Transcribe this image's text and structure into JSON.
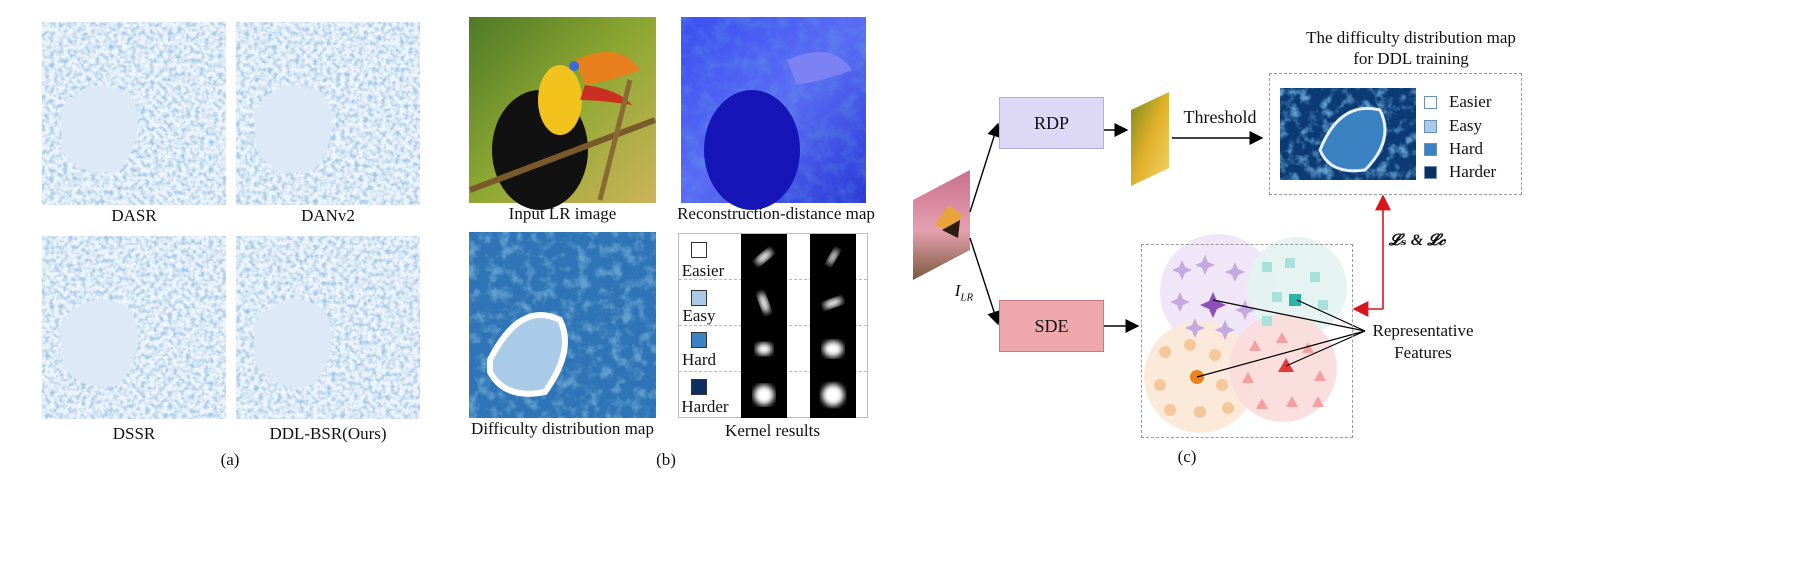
{
  "panel_a": {
    "maps": [
      {
        "label": "DASR"
      },
      {
        "label": "DANv2"
      },
      {
        "label": "DSSR"
      },
      {
        "label": "DDL-BSR(Ours)"
      }
    ],
    "caption": "(a)"
  },
  "panel_b": {
    "input_label": "Input LR image",
    "recon_label": "Reconstruction-distance map",
    "difficulty_label": "Difficulty distribution map",
    "kernel_label": "Kernel results",
    "kernel_rows": [
      {
        "label": "Easier",
        "color": "#ffffff"
      },
      {
        "label": "Easy",
        "color": "#a9cbe8"
      },
      {
        "label": "Hard",
        "color": "#3b82c2"
      },
      {
        "label": "Harder",
        "color": "#0b2f5e"
      }
    ],
    "caption": "(b)"
  },
  "panel_c": {
    "input_label_main": "I",
    "input_label_sub": "LR",
    "rdp_label": "RDP",
    "sde_label": "SDE",
    "threshold_label": "Threshold",
    "map_title": "The difficulty distribution map for DDL training",
    "legend": [
      {
        "label": "Easier",
        "color": "#ffffff"
      },
      {
        "label": "Easy",
        "color": "#a9cbe8"
      },
      {
        "label": "Hard",
        "color": "#3b82c2"
      },
      {
        "label": "Harder",
        "color": "#0b2f5e"
      }
    ],
    "loss_label": "𝓛ₛ & 𝓛𝒸",
    "rep_label": "Representative Features",
    "caption": "(c)",
    "colors": {
      "rdp_fill": "#ddd8f5",
      "sde_fill": "#eea7ac",
      "arrow_red": "#d8141c"
    }
  }
}
